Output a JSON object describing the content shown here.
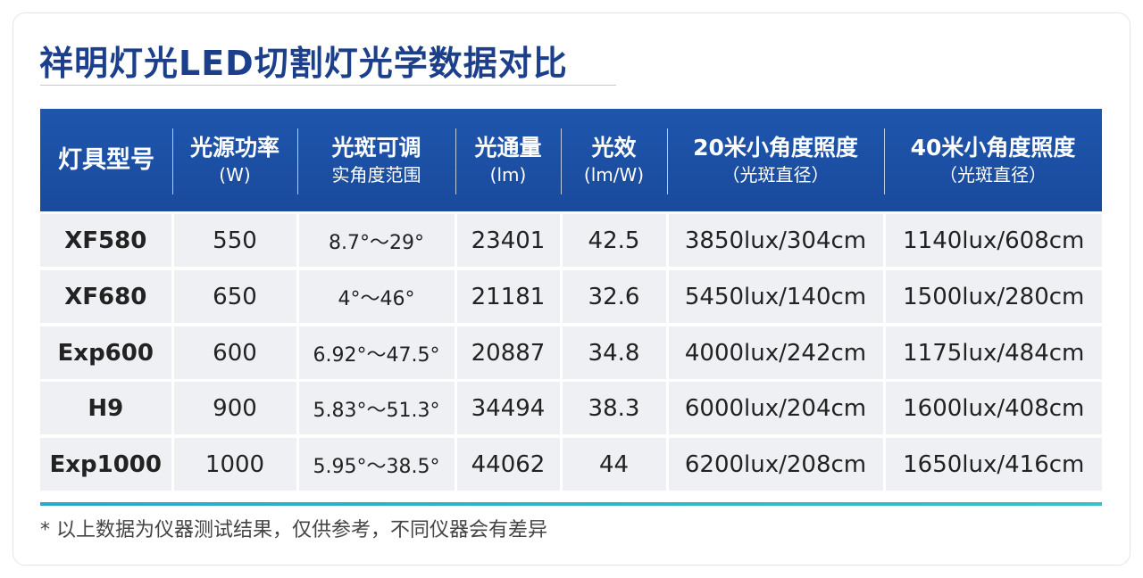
{
  "header": {
    "title": "祥明灯光LED切割灯光学数据对比"
  },
  "table": {
    "columns": [
      [
        "灯具型号"
      ],
      [
        "光源功率",
        "(W)"
      ],
      [
        "光斑可调",
        "实角度范围"
      ],
      [
        "光通量",
        "(lm)"
      ],
      [
        "光效",
        "(lm/W)"
      ],
      [
        "20米小角度照度",
        "（光斑直径）"
      ],
      [
        "40米小角度照度",
        "（光斑直径）"
      ]
    ],
    "rows": [
      [
        "XF580",
        "550",
        "8.7°～29°",
        "23401",
        "42.5",
        "3850lux/304cm",
        "1140lux/608cm"
      ],
      [
        "XF680",
        "650",
        "4°～46°",
        "21181",
        "32.6",
        "5450lux/140cm",
        "1500lux/280cm"
      ],
      [
        "Exp600",
        "600",
        "6.92°～47.5°",
        "20887",
        "34.8",
        "4000lux/242cm",
        "1175lux/484cm"
      ],
      [
        "H9",
        "900",
        "5.83°～51.3°",
        "34494",
        "38.3",
        "6000lux/204cm",
        "1600lux/408cm"
      ],
      [
        "Exp1000",
        "1000",
        "5.95°～38.5°",
        "44062",
        "44",
        "6200lux/208cm",
        "1650lux/416cm"
      ]
    ]
  },
  "footnote": "* 以上数据为仪器测试结果，仅供参考，不同仪器会有差异"
}
